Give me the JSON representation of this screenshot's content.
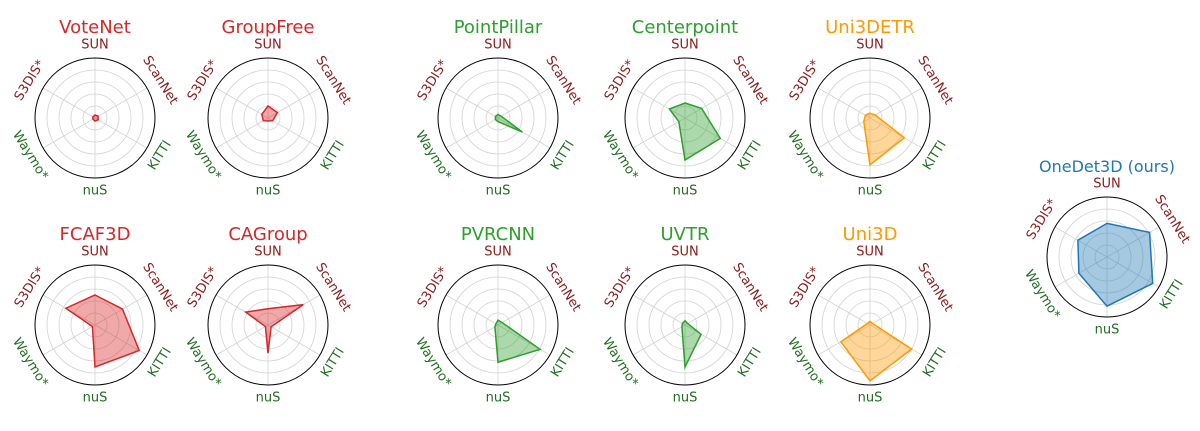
{
  "figure": {
    "axes": [
      "SUN",
      "ScanNet",
      "KITTI",
      "nuS",
      "Waymo*",
      "S3DIS*"
    ],
    "axis_colors": [
      "#8b1a1a",
      "#8b1a1a",
      "#1f6e1f",
      "#1f6e1f",
      "#1f6e1f",
      "#8b1a1a"
    ],
    "grid": true,
    "rlim": [
      0,
      1
    ]
  },
  "chart_data": [
    {
      "type": "radar",
      "title": "VoteNet",
      "color": "#d62728",
      "values": [
        0.05,
        0.06,
        0.06,
        0.05,
        0.04,
        0.04
      ]
    },
    {
      "type": "radar",
      "title": "GroupFree",
      "color": "#d62728",
      "values": [
        0.2,
        0.18,
        0.09,
        0.05,
        0.09,
        0.12
      ]
    },
    {
      "type": "radar",
      "title": "PointPillar",
      "color": "#2ca02c",
      "values": [
        0.06,
        0.06,
        0.47,
        0.06,
        0.05,
        0.05
      ]
    },
    {
      "type": "radar",
      "title": "Centerpoint",
      "color": "#2ca02c",
      "values": [
        0.25,
        0.32,
        0.68,
        0.7,
        0.12,
        0.3
      ]
    },
    {
      "type": "radar",
      "title": "Uni3DETR",
      "color": "#ff9900",
      "values": [
        0.08,
        0.1,
        0.66,
        0.78,
        0.12,
        0.09
      ]
    },
    {
      "type": "radar",
      "title": "FCAF3D",
      "color": "#d62728",
      "values": [
        0.5,
        0.53,
        0.85,
        0.7,
        0.05,
        0.56
      ]
    },
    {
      "type": "radar",
      "title": "CAGroup",
      "color": "#d62728",
      "values": [
        0.27,
        0.68,
        0.06,
        0.47,
        0.05,
        0.43
      ]
    },
    {
      "type": "radar",
      "title": "PVRCNN",
      "color": "#2ca02c",
      "values": [
        0.08,
        0.08,
        0.81,
        0.62,
        0.06,
        0.04
      ]
    },
    {
      "type": "radar",
      "title": "UVTR",
      "color": "#2ca02c",
      "values": [
        0.07,
        0.05,
        0.31,
        0.7,
        0.06,
        0.05
      ]
    },
    {
      "type": "radar",
      "title": "Uni3D",
      "color": "#ff9900",
      "values": [
        0.06,
        0.05,
        0.8,
        0.93,
        0.56,
        0.05
      ]
    },
    {
      "type": "radar",
      "title": "OneDet3D (ours)",
      "color": "#1f77b4",
      "values": [
        0.56,
        0.82,
        0.88,
        0.82,
        0.54,
        0.56
      ]
    }
  ]
}
